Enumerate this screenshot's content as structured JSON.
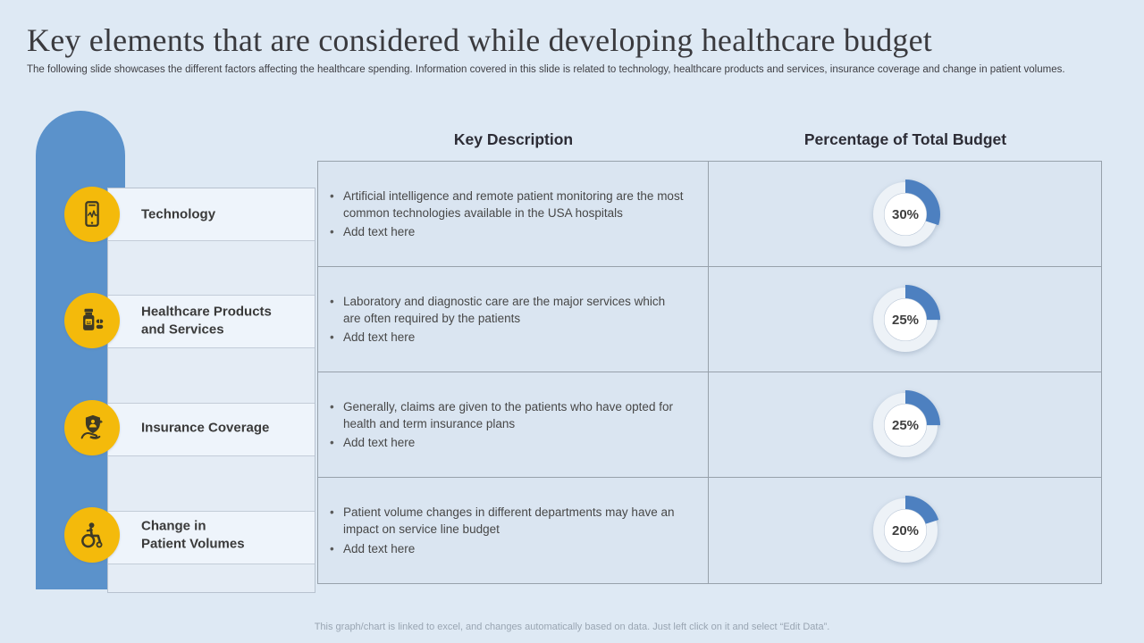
{
  "slide": {
    "title": "Key elements that are considered while developing healthcare budget",
    "subtitle": "The following slide showcases the different factors affecting the healthcare spending. Information covered in this slide is related to technology, healthcare products and services, insurance coverage and change in patient volumes.",
    "footer_note": "This graph/chart is linked to excel, and changes automatically based on data. Just left click on it and select “Edit Data”."
  },
  "table": {
    "header_description": "Key Description",
    "header_percentage": "Percentage of Total Budget"
  },
  "rows": [
    {
      "label": "Technology",
      "icon": "smartphone-monitoring-icon",
      "bullets": [
        "Artificial intelligence and remote patient monitoring are the most common technologies available in the USA hospitals",
        "Add text here"
      ],
      "percent": 30,
      "percent_label": "30%"
    },
    {
      "label": "Healthcare Products\nand Services",
      "icon": "medicine-bottle-icon",
      "bullets": [
        "Laboratory and diagnostic care are the major services which are often required by the patients",
        "Add text here"
      ],
      "percent": 25,
      "percent_label": "25%"
    },
    {
      "label": "Insurance Coverage",
      "icon": "shield-hand-icon",
      "bullets": [
        "Generally, claims are given to the patients who have opted for health and term insurance plans",
        "Add text here"
      ],
      "percent": 25,
      "percent_label": "25%"
    },
    {
      "label": "Change in\nPatient Volumes",
      "icon": "wheelchair-icon",
      "bullets": [
        "Patient volume changes in different departments may have an impact on service line budget",
        "Add text here"
      ],
      "percent": 20,
      "percent_label": "20%"
    }
  ],
  "colors": {
    "sidebar_blue": "#5b92cb",
    "donut_blue": "#4d80c0",
    "donut_track": "#edf2f7",
    "icon_yellow": "#f4ba0b",
    "icon_glyph": "#3e3a26"
  }
}
